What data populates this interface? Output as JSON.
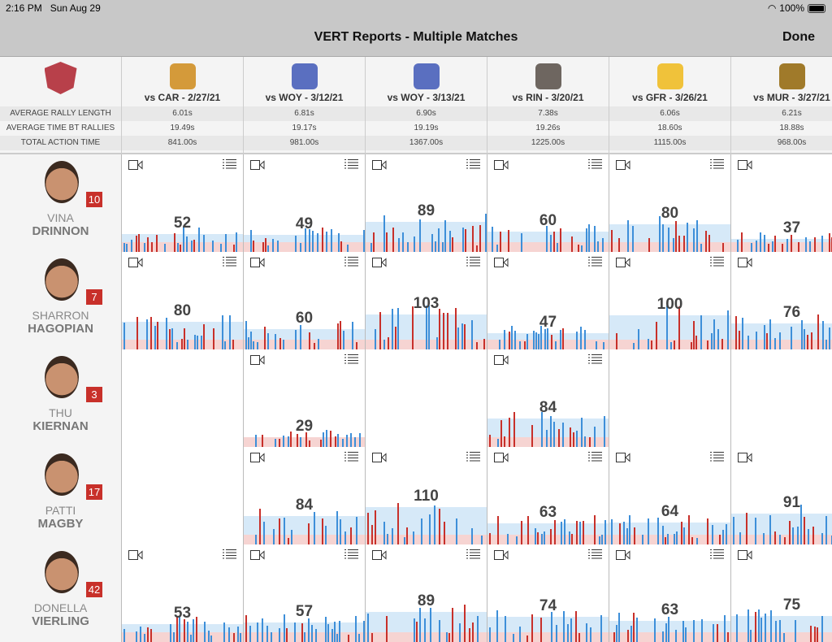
{
  "status": {
    "time": "2:16 PM",
    "date": "Sun Aug 29",
    "battery": "100%"
  },
  "nav": {
    "title": "VERT Reports - Multiple Matches",
    "done": "Done"
  },
  "stat_labels": [
    "AVERAGE RALLY LENGTH",
    "AVERAGE TIME BT RALLIES",
    "TOTAL ACTION TIME"
  ],
  "colors": {
    "blue_bar": "#3d8fd9",
    "red_bar": "#c8302a",
    "blue_band": "#d6e9f8",
    "red_band": "#f6d4d2",
    "badge": "#c8302a"
  },
  "matches": [
    {
      "label": "vs CAR - 2/27/21",
      "logo": "#d49a3a",
      "stats": [
        "6.01s",
        "19.49s",
        "841.00s"
      ]
    },
    {
      "label": "vs WOY - 3/12/21",
      "logo": "#5a6fc0",
      "stats": [
        "6.81s",
        "19.17s",
        "981.00s"
      ]
    },
    {
      "label": "vs WOY - 3/13/21",
      "logo": "#5a6fc0",
      "stats": [
        "6.90s",
        "19.19s",
        "1367.00s"
      ]
    },
    {
      "label": "vs RIN - 3/20/21",
      "logo": "#6e6660",
      "stats": [
        "7.38s",
        "19.26s",
        "1225.00s"
      ]
    },
    {
      "label": "vs GFR - 3/26/21",
      "logo": "#f0c23a",
      "stats": [
        "6.06s",
        "18.60s",
        "1115.00s"
      ]
    },
    {
      "label": "vs MUR - 3/27/21",
      "logo": "#a07a2a",
      "stats": [
        "6.21s",
        "18.88s",
        "968.00s"
      ]
    }
  ],
  "team_logo": "#b8404a",
  "players": [
    {
      "first": "VINA",
      "last": "DRINNON",
      "number": "10",
      "values": [
        52,
        49,
        89,
        60,
        80,
        37
      ]
    },
    {
      "first": "SHARRON",
      "last": "HAGOPIAN",
      "number": "7",
      "values": [
        80,
        60,
        103,
        47,
        100,
        76
      ]
    },
    {
      "first": "THU",
      "last": "KIERNAN",
      "number": "3",
      "values": [
        null,
        29,
        null,
        84,
        null,
        null
      ]
    },
    {
      "first": "PATTI",
      "last": "MAGBY",
      "number": "17",
      "values": [
        null,
        84,
        110,
        63,
        64,
        91
      ]
    },
    {
      "first": "DONELLA",
      "last": "VIERLING",
      "number": "42",
      "values": [
        53,
        57,
        89,
        74,
        63,
        75
      ]
    }
  ]
}
